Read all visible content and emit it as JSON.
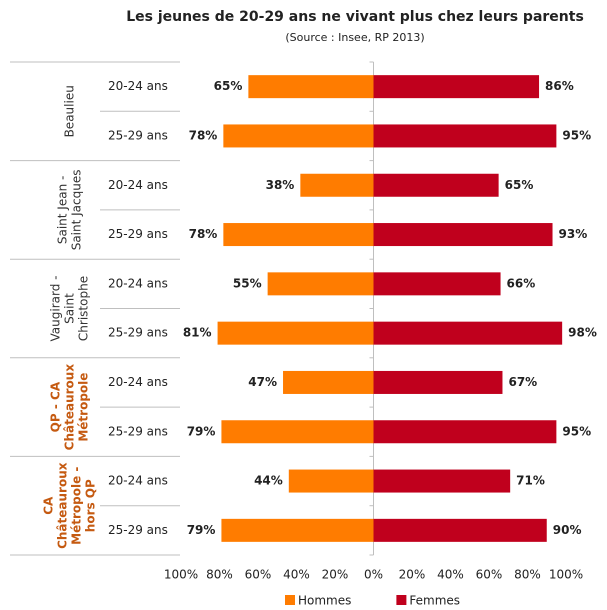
{
  "chart_data": {
    "type": "butterfly-bar",
    "title": "Les jeunes de 20-29 ans ne vivant plus chez leurs parents",
    "subtitle": "(Source : Insee, RP 2013)",
    "groups": [
      {
        "lines": [
          "Beaulieu"
        ],
        "color": "#333333",
        "bold": false
      },
      {
        "lines": [
          "Saint Jean -",
          "Saint Jacques"
        ],
        "color": "#333333",
        "bold": false
      },
      {
        "lines": [
          "Vaugirard -",
          "Saint",
          "Christophe"
        ],
        "color": "#333333",
        "bold": false
      },
      {
        "lines": [
          "QP - CA",
          "Châteauroux",
          "Métropole"
        ],
        "color": "#c55a11",
        "bold": true
      },
      {
        "lines": [
          "CA",
          "Châteauroux",
          "Métropole -",
          "hors QP"
        ],
        "color": "#c55a11",
        "bold": true
      }
    ],
    "categories": [
      "20-24 ans",
      "25-29 ans",
      "20-24 ans",
      "25-29 ans",
      "20-24 ans",
      "25-29 ans",
      "20-24 ans",
      "25-29 ans",
      "20-24 ans",
      "25-29 ans"
    ],
    "series": [
      {
        "name": "Hommes",
        "color": "#ff7c00",
        "side": "left",
        "values": [
          65,
          78,
          38,
          78,
          55,
          81,
          47,
          79,
          44,
          79
        ],
        "value_labels": [
          "65%",
          "78%",
          "38%",
          "78%",
          "55%",
          "81%",
          "47%",
          "79%",
          "44%",
          "79%"
        ]
      },
      {
        "name": "Femmes",
        "color": "#c0001d",
        "side": "right",
        "values": [
          86,
          95,
          65,
          93,
          66,
          98,
          67,
          95,
          71,
          90
        ],
        "value_labels": [
          "86%",
          "95%",
          "65%",
          "93%",
          "66%",
          "98%",
          "67%",
          "95%",
          "71%",
          "90%"
        ]
      }
    ],
    "xlim": [
      -100,
      100
    ],
    "xticks": [
      {
        "value": -100,
        "label": "100%"
      },
      {
        "value": -80,
        "label": "80%"
      },
      {
        "value": -60,
        "label": "60%"
      },
      {
        "value": -40,
        "label": "40%"
      },
      {
        "value": -20,
        "label": "20%"
      },
      {
        "value": 0,
        "label": "0%"
      },
      {
        "value": 20,
        "label": "20%"
      },
      {
        "value": 40,
        "label": "40%"
      },
      {
        "value": 60,
        "label": "60%"
      },
      {
        "value": 80,
        "label": "80%"
      },
      {
        "value": 100,
        "label": "100%"
      }
    ],
    "legend": "bottom"
  }
}
